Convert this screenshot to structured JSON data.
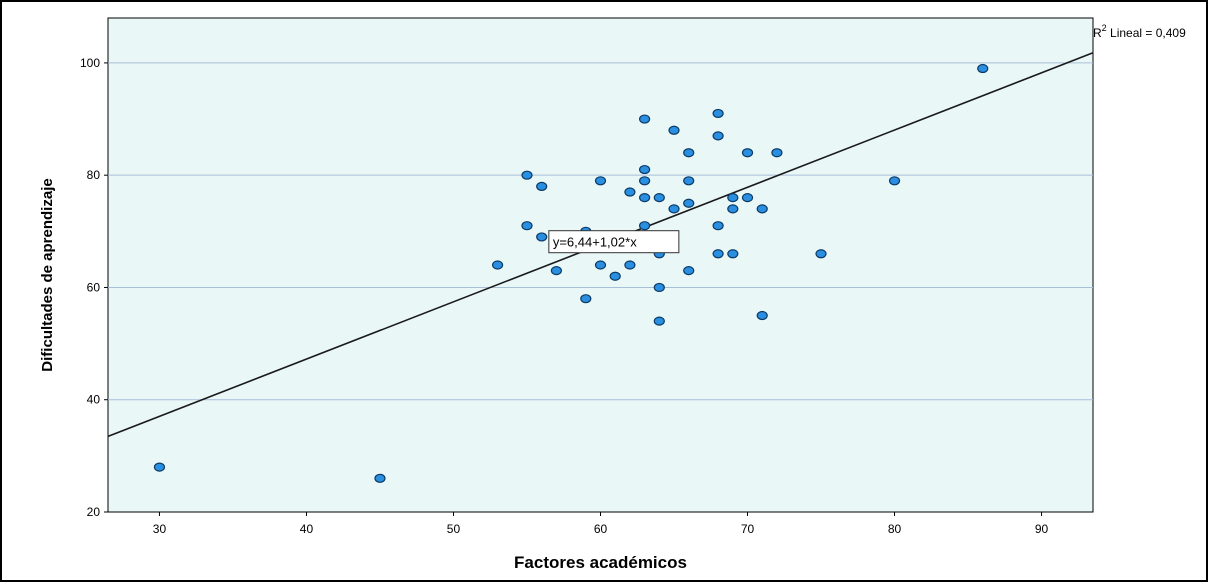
{
  "chart_data": {
    "type": "scatter",
    "title": "",
    "xlabel": "Factores académicos",
    "ylabel": "Dificultades de aprendizaje",
    "xlim": [
      26.5,
      93.5
    ],
    "ylim": [
      20,
      108
    ],
    "xticks": [
      30,
      40,
      50,
      60,
      70,
      80,
      90
    ],
    "yticks": [
      20,
      40,
      60,
      80,
      100
    ],
    "grid": "horizontal",
    "fit_line": {
      "intercept": 6.44,
      "slope": 1.02,
      "label": "y=6,44+1,02*x"
    },
    "r2_label": {
      "prefix": "R",
      "superscript": "2",
      "text": " Lineal = 0,409"
    },
    "points": [
      {
        "x": 30,
        "y": 28
      },
      {
        "x": 45,
        "y": 26
      },
      {
        "x": 53,
        "y": 64
      },
      {
        "x": 55,
        "y": 80
      },
      {
        "x": 55,
        "y": 71
      },
      {
        "x": 56,
        "y": 78
      },
      {
        "x": 56,
        "y": 69
      },
      {
        "x": 57,
        "y": 63
      },
      {
        "x": 59,
        "y": 70
      },
      {
        "x": 59,
        "y": 58
      },
      {
        "x": 60,
        "y": 79
      },
      {
        "x": 60,
        "y": 64
      },
      {
        "x": 61,
        "y": 62
      },
      {
        "x": 62,
        "y": 77
      },
      {
        "x": 62,
        "y": 64
      },
      {
        "x": 63,
        "y": 90
      },
      {
        "x": 63,
        "y": 81
      },
      {
        "x": 63,
        "y": 79
      },
      {
        "x": 63,
        "y": 76
      },
      {
        "x": 63,
        "y": 71
      },
      {
        "x": 64,
        "y": 76
      },
      {
        "x": 64,
        "y": 68
      },
      {
        "x": 64,
        "y": 66
      },
      {
        "x": 64,
        "y": 60
      },
      {
        "x": 64,
        "y": 54
      },
      {
        "x": 65,
        "y": 88
      },
      {
        "x": 65,
        "y": 74
      },
      {
        "x": 66,
        "y": 84
      },
      {
        "x": 66,
        "y": 79
      },
      {
        "x": 66,
        "y": 75
      },
      {
        "x": 66,
        "y": 63
      },
      {
        "x": 68,
        "y": 91
      },
      {
        "x": 68,
        "y": 87
      },
      {
        "x": 68,
        "y": 71
      },
      {
        "x": 68,
        "y": 66
      },
      {
        "x": 69,
        "y": 76
      },
      {
        "x": 69,
        "y": 74
      },
      {
        "x": 69,
        "y": 66
      },
      {
        "x": 70,
        "y": 84
      },
      {
        "x": 70,
        "y": 76
      },
      {
        "x": 71,
        "y": 74
      },
      {
        "x": 71,
        "y": 55
      },
      {
        "x": 72,
        "y": 84
      },
      {
        "x": 75,
        "y": 66
      },
      {
        "x": 80,
        "y": 79
      },
      {
        "x": 86,
        "y": 99
      }
    ],
    "colors": {
      "plot_bg": "#e9f7f7",
      "grid": "#a8bfd8",
      "point_fill": "#2a8fe0",
      "point_stroke": "#0b3a66",
      "line": "#1a1a1a",
      "frame": "#000000"
    }
  }
}
